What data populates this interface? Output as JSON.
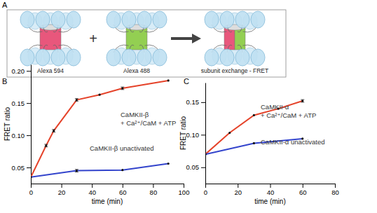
{
  "diagram": {
    "panel_label": "A",
    "operator": "+",
    "items": [
      {
        "label": "Alexa 594",
        "colors": [
          "#e8577c"
        ]
      },
      {
        "label": "Alexa 488",
        "colors": [
          "#93cf52"
        ]
      },
      {
        "label": "subunit exchange - FRET",
        "colors": [
          "#e8577c",
          "#93cf52"
        ]
      }
    ]
  },
  "chart_data": [
    {
      "type": "line",
      "panel_label": "B",
      "xlabel": "time (min)",
      "ylabel": "FRET ratio",
      "xlim": [
        0,
        100
      ],
      "xticks": [
        0,
        20,
        40,
        60,
        80,
        100
      ],
      "ylim": [
        0.025,
        0.21
      ],
      "yticks": [
        {
          "value": 0.05,
          "label": "0.05"
        },
        {
          "value": 0.1,
          "label": "0.10"
        },
        {
          "value": 0.15,
          "label": "0.15"
        },
        {
          "value": 0.2,
          "label": "0.20"
        }
      ],
      "marker": "circle",
      "series": [
        {
          "name": "CaMKII-β\n+ Ca²⁺/CaM + ATP",
          "color": "#e5432a",
          "x": [
            0,
            10,
            15,
            30,
            45,
            60,
            90
          ],
          "values": [
            0.035,
            0.084,
            0.107,
            0.155,
            0.163,
            0.173,
            0.185
          ],
          "errors": [
            null,
            0.002,
            0.002,
            0.002,
            null,
            0.002,
            null
          ]
        },
        {
          "name": "CaMKII-β unactivated",
          "color": "#3344cc",
          "x": [
            0,
            30,
            60,
            90
          ],
          "values": [
            0.035,
            0.045,
            0.046,
            0.056
          ],
          "errors": [
            null,
            0.002,
            null,
            null
          ]
        }
      ]
    },
    {
      "type": "line",
      "panel_label": "C",
      "xlabel": "time (min)",
      "ylabel": "FRET ratio",
      "xlim": [
        0,
        80
      ],
      "xticks": [
        0,
        20,
        40,
        60,
        80
      ],
      "ylim": [
        0.025,
        0.18
      ],
      "yticks": [
        {
          "value": 0.05,
          "label": "0.05"
        },
        {
          "value": 0.1,
          "label": "0.10"
        },
        {
          "value": 0.15,
          "label": "0.15"
        }
      ],
      "marker": "circle",
      "series": [
        {
          "name": "CaMKII-α\n+ Ca²⁺/CaM + ATP",
          "color": "#e5432a",
          "x": [
            0,
            15,
            30,
            45,
            60
          ],
          "values": [
            0.07,
            0.103,
            0.13,
            0.14,
            0.152
          ],
          "errors": [
            null,
            null,
            null,
            null,
            0.002
          ]
        },
        {
          "name": "CaMKII-α unactivated",
          "color": "#3344cc",
          "x": [
            0,
            30,
            60
          ],
          "values": [
            0.07,
            0.087,
            0.094
          ],
          "errors": [
            null,
            null,
            null
          ]
        }
      ]
    }
  ]
}
